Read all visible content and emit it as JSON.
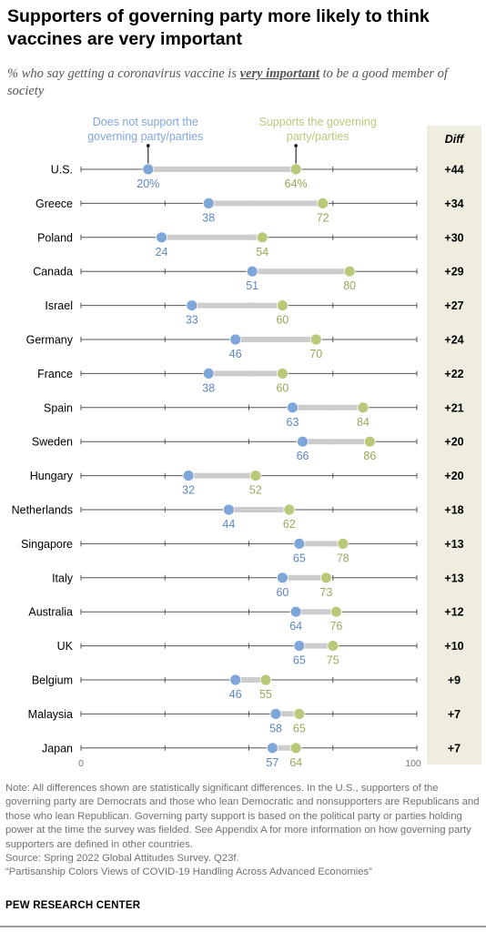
{
  "title": "Supporters of governing party more likely to think vaccines are very important",
  "subtitle": {
    "before": "% who say getting a coronavirus vaccine is ",
    "emphasis": "very important",
    "after": " to be a good member of society"
  },
  "colors": {
    "non_supporters": "#7fa6d9",
    "supporters": "#b9c97a",
    "diff_panel": "#efece0",
    "connector": "#cccccc",
    "axis": "#555555"
  },
  "chart_data": {
    "type": "dot",
    "x_range": [
      0,
      100
    ],
    "x_tick_labels": [
      "0",
      "100"
    ],
    "diff_header": "Diff",
    "series": [
      {
        "name": "Does not support the governing party/parties",
        "key": "non",
        "color": "#7fa6d9"
      },
      {
        "name": "Supports the governing party/parties",
        "key": "sup",
        "color": "#b9c97a"
      }
    ],
    "rows": [
      {
        "country": "U.S.",
        "non": 20,
        "sup": 64,
        "non_label": "20%",
        "sup_label": "64%",
        "diff": "+44"
      },
      {
        "country": "Greece",
        "non": 38,
        "sup": 72,
        "non_label": "38",
        "sup_label": "72",
        "diff": "+34"
      },
      {
        "country": "Poland",
        "non": 24,
        "sup": 54,
        "non_label": "24",
        "sup_label": "54",
        "diff": "+30"
      },
      {
        "country": "Canada",
        "non": 51,
        "sup": 80,
        "non_label": "51",
        "sup_label": "80",
        "diff": "+29"
      },
      {
        "country": "Israel",
        "non": 33,
        "sup": 60,
        "non_label": "33",
        "sup_label": "60",
        "diff": "+27"
      },
      {
        "country": "Germany",
        "non": 46,
        "sup": 70,
        "non_label": "46",
        "sup_label": "70",
        "diff": "+24"
      },
      {
        "country": "France",
        "non": 38,
        "sup": 60,
        "non_label": "38",
        "sup_label": "60",
        "diff": "+22"
      },
      {
        "country": "Spain",
        "non": 63,
        "sup": 84,
        "non_label": "63",
        "sup_label": "84",
        "diff": "+21"
      },
      {
        "country": "Sweden",
        "non": 66,
        "sup": 86,
        "non_label": "66",
        "sup_label": "86",
        "diff": "+20"
      },
      {
        "country": "Hungary",
        "non": 32,
        "sup": 52,
        "non_label": "32",
        "sup_label": "52",
        "diff": "+20"
      },
      {
        "country": "Netherlands",
        "non": 44,
        "sup": 62,
        "non_label": "44",
        "sup_label": "62",
        "diff": "+18"
      },
      {
        "country": "Singapore",
        "non": 65,
        "sup": 78,
        "non_label": "65",
        "sup_label": "78",
        "diff": "+13"
      },
      {
        "country": "Italy",
        "non": 60,
        "sup": 73,
        "non_label": "60",
        "sup_label": "73",
        "diff": "+13"
      },
      {
        "country": "Australia",
        "non": 64,
        "sup": 76,
        "non_label": "64",
        "sup_label": "76",
        "diff": "+12"
      },
      {
        "country": "UK",
        "non": 65,
        "sup": 75,
        "non_label": "65",
        "sup_label": "75",
        "diff": "+10"
      },
      {
        "country": "Belgium",
        "non": 46,
        "sup": 55,
        "non_label": "46",
        "sup_label": "55",
        "diff": "+9"
      },
      {
        "country": "Malaysia",
        "non": 58,
        "sup": 65,
        "non_label": "58",
        "sup_label": "65",
        "diff": "+7"
      },
      {
        "country": "Japan",
        "non": 57,
        "sup": 64,
        "non_label": "57",
        "sup_label": "64",
        "diff": "+7"
      }
    ]
  },
  "notes": {
    "note": "Note: All differences shown are statistically significant differences. In the U.S., supporters of the governing party are Democrats and those who lean Democratic and nonsupporters are Republicans and those who lean Republican. Governing party support is based on the political party or parties holding power at the time the survey was fielded. See Appendix A for more information on how governing party supporters are defined in other countries.",
    "source": "Source: Spring 2022 Global Attitudes Survey. Q23f.",
    "report": "“Partisanship Colors Views of COVID-19 Handling Across Advanced Economies”"
  },
  "brand": "PEW RESEARCH CENTER"
}
